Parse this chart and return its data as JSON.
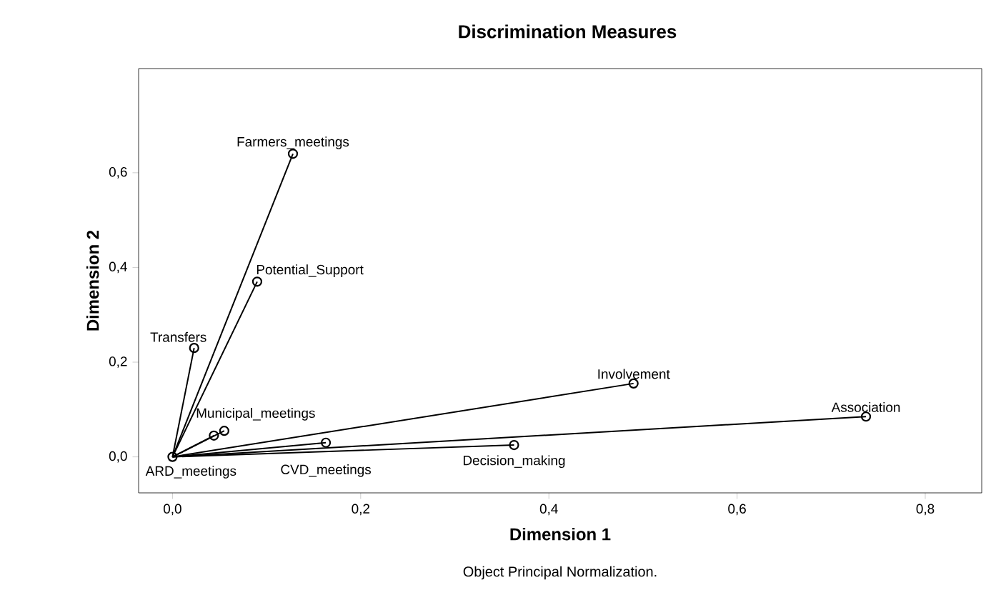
{
  "chart_data": {
    "type": "scatter",
    "title": "Discrimination Measures",
    "xlabel": "Dimension 1",
    "ylabel": "Dimension 2",
    "xlim": [
      -0.036,
      0.86
    ],
    "ylim": [
      -0.076,
      0.82
    ],
    "xticks": [
      {
        "value": 0,
        "label": "0,0"
      },
      {
        "value": 0.2,
        "label": "0,2"
      },
      {
        "value": 0.4,
        "label": "0,4"
      },
      {
        "value": 0.6,
        "label": "0,6"
      },
      {
        "value": 0.8,
        "label": "0,8"
      }
    ],
    "yticks": [
      {
        "value": 0,
        "label": "0,0"
      },
      {
        "value": 0.2,
        "label": "0,2"
      },
      {
        "value": 0.4,
        "label": "0,4"
      },
      {
        "value": 0.6,
        "label": "0,6"
      }
    ],
    "grid": false,
    "series": [
      {
        "marker": "circle",
        "color": "#000000",
        "x": [
          0.128,
          0.09,
          0.023,
          0.49,
          0.737,
          0.363,
          0.055,
          0.044,
          0.163,
          0.0
        ],
        "values": [
          0.64,
          0.37,
          0.23,
          0.155,
          0.085,
          0.025,
          0.055,
          0.045,
          0.03,
          0.0
        ]
      },
      {
        "type": "line",
        "color": "#000000",
        "x": [
          0,
          0.128
        ],
        "values": [
          0,
          0.64
        ]
      },
      {
        "type": "line",
        "color": "#000000",
        "x": [
          0,
          0.09
        ],
        "values": [
          0,
          0.37
        ]
      },
      {
        "type": "line",
        "color": "#000000",
        "x": [
          0,
          0.023
        ],
        "values": [
          0,
          0.23
        ]
      },
      {
        "type": "line",
        "color": "#000000",
        "x": [
          0,
          0.49
        ],
        "values": [
          0,
          0.155
        ]
      },
      {
        "type": "line",
        "color": "#000000",
        "x": [
          0,
          0.737
        ],
        "values": [
          0,
          0.085
        ]
      },
      {
        "type": "line",
        "color": "#000000",
        "x": [
          0,
          0.363
        ],
        "values": [
          0,
          0.025
        ]
      },
      {
        "type": "line",
        "color": "#000000",
        "x": [
          0,
          0.055
        ],
        "values": [
          0,
          0.055
        ]
      },
      {
        "type": "line",
        "color": "#000000",
        "x": [
          0,
          0.044
        ],
        "values": [
          0,
          0.045
        ]
      },
      {
        "type": "line",
        "color": "#000000",
        "x": [
          0,
          0.163
        ],
        "values": [
          0,
          0.03
        ]
      }
    ],
    "annotations": [
      {
        "text": "Farmers_meetings",
        "x": 0.128,
        "y": 0.64
      },
      {
        "text": "Potential_Support",
        "x": 0.09,
        "y": 0.37
      },
      {
        "text": "Transfers",
        "x": 0.023,
        "y": 0.23
      },
      {
        "text": "Involvement",
        "x": 0.49,
        "y": 0.155
      },
      {
        "text": "Association",
        "x": 0.737,
        "y": 0.085
      },
      {
        "text": "Decision_making",
        "x": 0.363,
        "y": 0.025
      },
      {
        "text": "Municipal_meetings",
        "x": 0.055,
        "y": 0.055
      },
      {
        "text": "ARD_meetings",
        "x": 0.044,
        "y": 0.045
      },
      {
        "text": "CVD_meetings",
        "x": 0.163,
        "y": 0.03
      },
      "Object Principal Normalization."
    ]
  }
}
